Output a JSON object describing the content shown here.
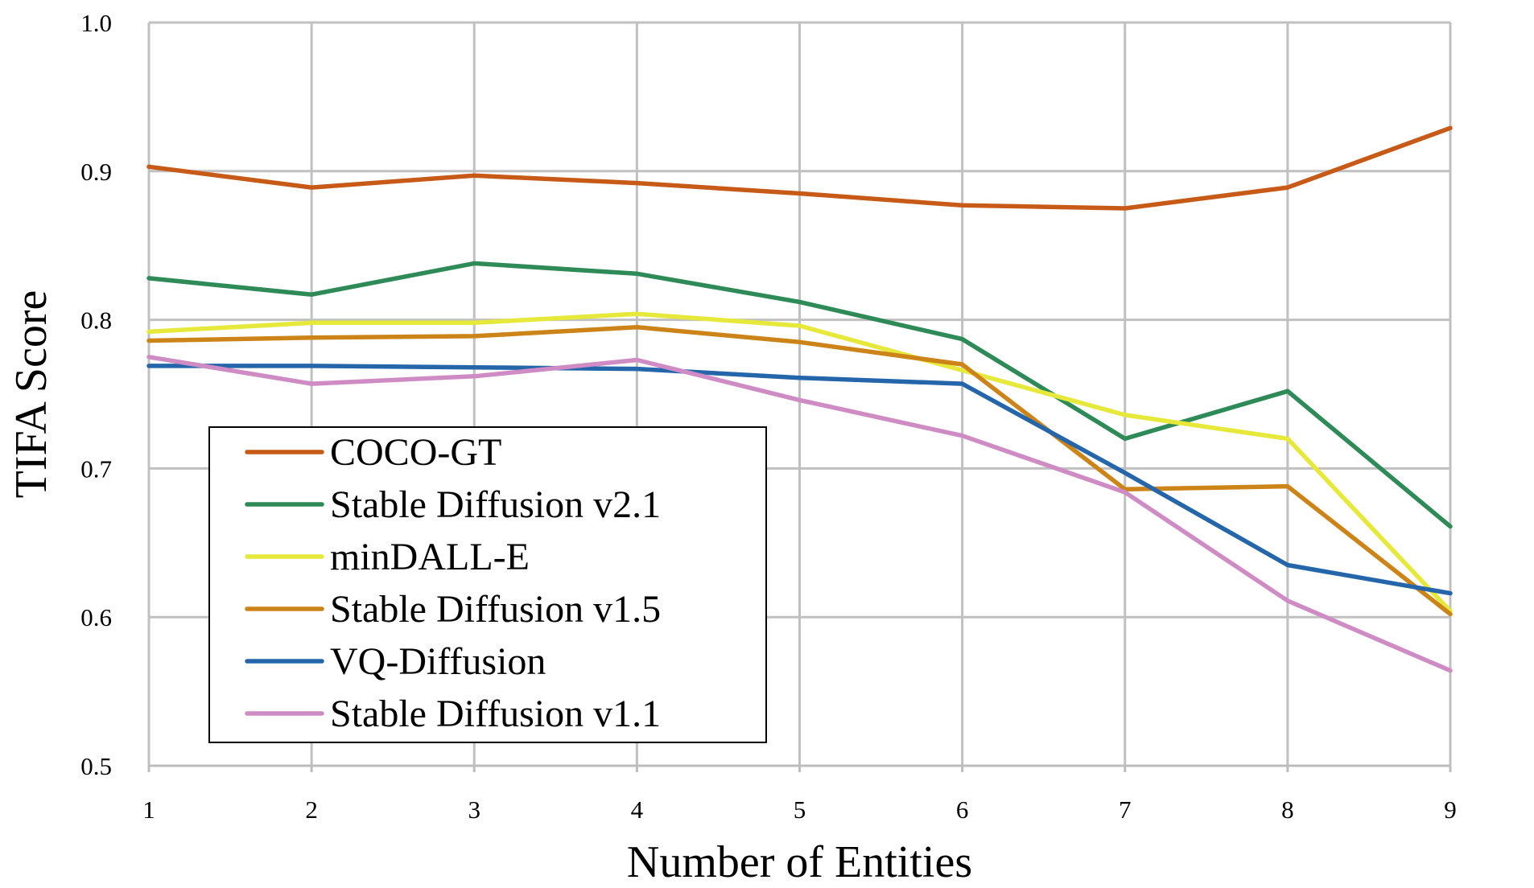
{
  "chart_data": {
    "type": "line",
    "xlabel": "Number of Entities",
    "ylabel": "TIFA Score",
    "x": [
      1,
      2,
      3,
      4,
      5,
      6,
      7,
      8,
      9
    ],
    "xlim": [
      1,
      9
    ],
    "ylim": [
      0.5,
      1.0
    ],
    "yticks": [
      0.5,
      0.6,
      0.7,
      0.8,
      0.9,
      1.0
    ],
    "ytick_labels": [
      "0.5",
      "0.6",
      "0.7",
      "0.8",
      "0.9",
      "1.0"
    ],
    "xtick_labels": [
      "1",
      "2",
      "3",
      "4",
      "5",
      "6",
      "7",
      "8",
      "9"
    ],
    "grid": true,
    "legend_position": "lower-left",
    "series": [
      {
        "name": "COCO-GT",
        "color": "#c85a17",
        "values": [
          0.903,
          0.889,
          0.897,
          0.892,
          0.885,
          0.877,
          0.875,
          0.889,
          0.929
        ]
      },
      {
        "name": "Stable Diffusion v2.1",
        "color": "#2e8b57",
        "values": [
          0.828,
          0.817,
          0.838,
          0.831,
          0.812,
          0.787,
          0.72,
          0.752,
          0.661
        ]
      },
      {
        "name": "minDALL-E",
        "color": "#e6e83a",
        "values": [
          0.792,
          0.798,
          0.798,
          0.804,
          0.796,
          0.766,
          0.736,
          0.72,
          0.604
        ]
      },
      {
        "name": "Stable Diffusion v1.5",
        "color": "#cc8418",
        "values": [
          0.786,
          0.788,
          0.789,
          0.795,
          0.785,
          0.77,
          0.686,
          0.688,
          0.602
        ]
      },
      {
        "name": "VQ-Diffusion",
        "color": "#2566aa",
        "values": [
          0.769,
          0.769,
          0.768,
          0.767,
          0.761,
          0.757,
          0.697,
          0.635,
          0.616
        ]
      },
      {
        "name": "Stable Diffusion v1.1",
        "color": "#cf8cc4",
        "values": [
          0.775,
          0.757,
          0.762,
          0.773,
          0.746,
          0.722,
          0.684,
          0.611,
          0.564
        ]
      }
    ]
  }
}
